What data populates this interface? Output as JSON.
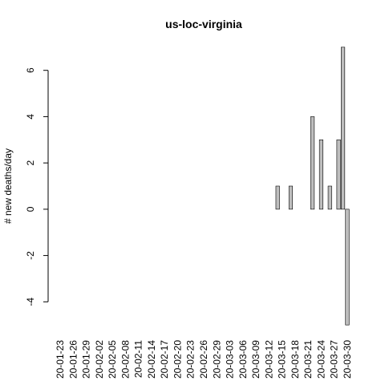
{
  "chart_data": {
    "type": "bar",
    "title": "us-loc-virginia",
    "y_label": "# new deaths/day",
    "categories": [
      "20-01-23",
      null,
      null,
      "20-01-26",
      null,
      null,
      "20-01-29",
      null,
      null,
      "20-02-02",
      null,
      null,
      "20-02-05",
      null,
      null,
      "20-02-08",
      null,
      null,
      "20-02-11",
      null,
      null,
      "20-02-14",
      null,
      null,
      "20-02-17",
      null,
      null,
      "20-02-20",
      null,
      null,
      "20-02-23",
      null,
      null,
      "20-02-26",
      null,
      null,
      "20-02-29",
      null,
      null,
      "20-03-03",
      null,
      null,
      "20-03-06",
      null,
      null,
      "20-03-09",
      null,
      null,
      "20-03-12",
      null,
      null,
      "20-03-15",
      null,
      null,
      "20-03-18",
      null,
      null,
      "20-03-21",
      null,
      null,
      "20-03-24",
      null,
      null,
      "20-03-27",
      null,
      null,
      "20-03-30"
    ],
    "values": [
      0,
      0,
      0,
      0,
      0,
      0,
      0,
      0,
      0,
      0,
      0,
      0,
      0,
      0,
      0,
      0,
      0,
      0,
      0,
      0,
      0,
      0,
      0,
      0,
      0,
      0,
      0,
      0,
      0,
      0,
      0,
      0,
      0,
      0,
      0,
      0,
      0,
      0,
      0,
      0,
      0,
      0,
      0,
      0,
      0,
      0,
      0,
      0,
      0,
      0,
      1,
      0,
      0,
      1,
      0,
      0,
      0,
      0,
      4,
      0,
      3,
      0,
      1,
      0,
      3,
      7,
      -5
    ],
    "color": "#bebebe",
    "ylim": [
      -5.48,
      7.48
    ],
    "yticks": [
      -4,
      -2,
      0,
      2,
      4,
      6
    ],
    "grid": false
  }
}
